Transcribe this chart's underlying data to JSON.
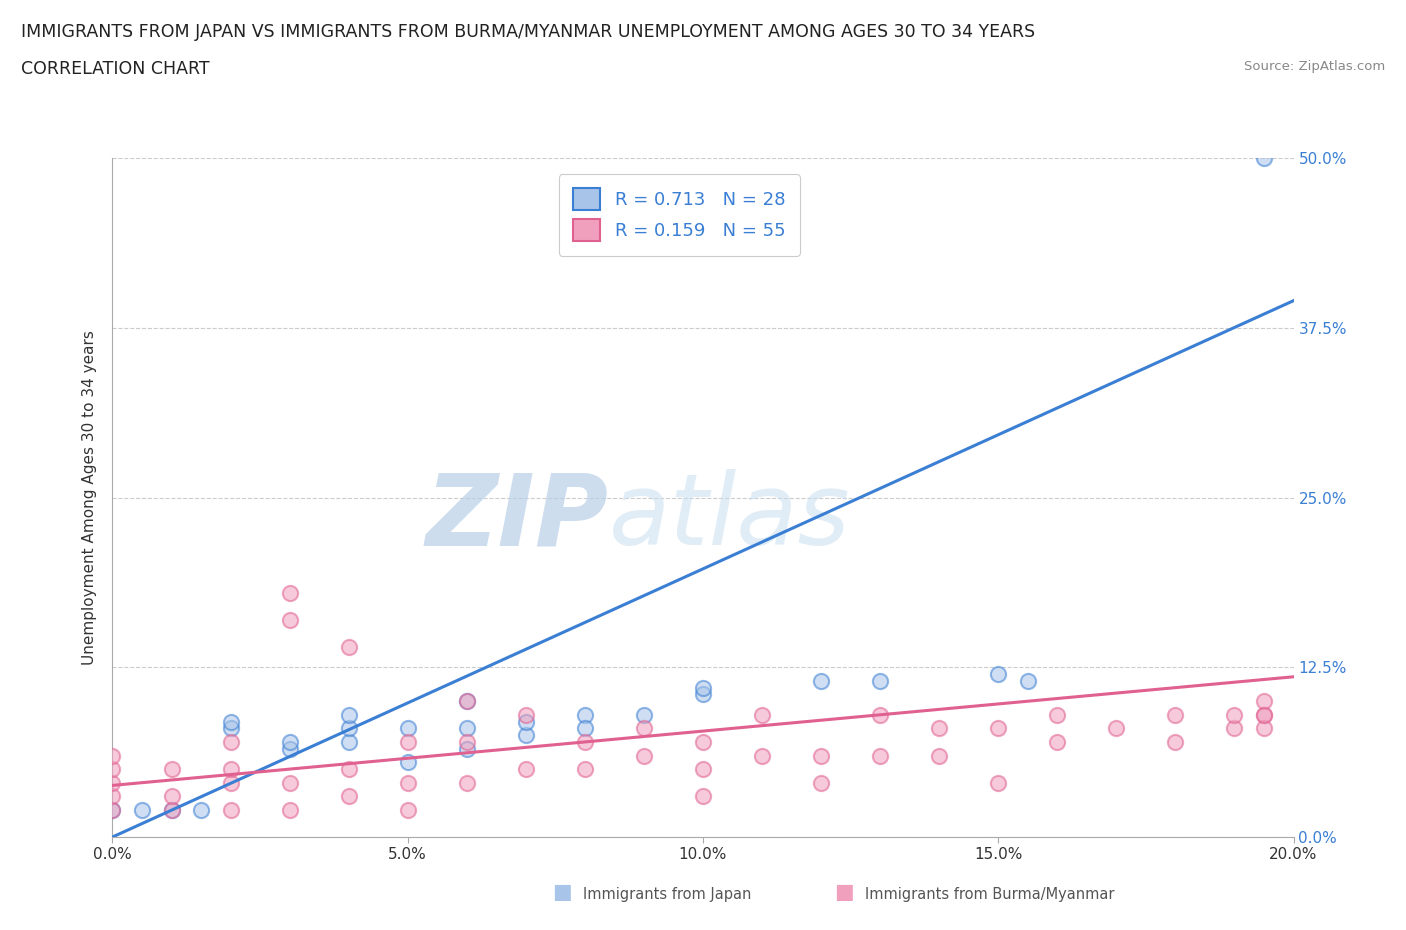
{
  "title_line1": "IMMIGRANTS FROM JAPAN VS IMMIGRANTS FROM BURMA/MYANMAR UNEMPLOYMENT AMONG AGES 30 TO 34 YEARS",
  "title_line2": "CORRELATION CHART",
  "source_text": "Source: ZipAtlas.com",
  "ylabel": "Unemployment Among Ages 30 to 34 years",
  "xlim": [
    0.0,
    0.2
  ],
  "ylim": [
    0.0,
    0.5
  ],
  "xticks": [
    0.0,
    0.05,
    0.1,
    0.15,
    0.2
  ],
  "yticks": [
    0.0,
    0.125,
    0.25,
    0.375,
    0.5
  ],
  "xtick_labels": [
    "0.0%",
    "5.0%",
    "10.0%",
    "15.0%",
    "20.0%"
  ],
  "ytick_labels": [
    "0.0%",
    "12.5%",
    "25.0%",
    "37.5%",
    "50.0%"
  ],
  "japan_color": "#a8c4e8",
  "burma_color": "#f0a0bc",
  "japan_line_color": "#3a7fd4",
  "burma_line_color": "#e06090",
  "right_axis_color": "#3a7fd4",
  "japan_R": 0.713,
  "japan_N": 28,
  "burma_R": 0.159,
  "burma_N": 55,
  "watermark_zip": "ZIP",
  "watermark_atlas": "atlas",
  "legend_label_japan": "Immigrants from Japan",
  "legend_label_burma": "Immigrants from Burma/Myanmar",
  "japan_scatter_x": [
    0.0,
    0.005,
    0.01,
    0.015,
    0.02,
    0.02,
    0.03,
    0.03,
    0.04,
    0.04,
    0.04,
    0.05,
    0.05,
    0.06,
    0.06,
    0.06,
    0.07,
    0.07,
    0.08,
    0.08,
    0.09,
    0.1,
    0.1,
    0.12,
    0.13,
    0.15,
    0.155,
    0.195
  ],
  "japan_scatter_y": [
    0.02,
    0.02,
    0.02,
    0.02,
    0.08,
    0.085,
    0.065,
    0.07,
    0.07,
    0.08,
    0.09,
    0.055,
    0.08,
    0.065,
    0.1,
    0.08,
    0.075,
    0.085,
    0.09,
    0.08,
    0.09,
    0.105,
    0.11,
    0.115,
    0.115,
    0.12,
    0.115,
    0.5
  ],
  "burma_scatter_x": [
    0.0,
    0.0,
    0.0,
    0.0,
    0.0,
    0.01,
    0.01,
    0.01,
    0.02,
    0.02,
    0.02,
    0.02,
    0.03,
    0.03,
    0.03,
    0.03,
    0.04,
    0.04,
    0.04,
    0.05,
    0.05,
    0.05,
    0.06,
    0.06,
    0.06,
    0.07,
    0.07,
    0.08,
    0.08,
    0.09,
    0.09,
    0.1,
    0.1,
    0.1,
    0.11,
    0.11,
    0.12,
    0.12,
    0.13,
    0.13,
    0.14,
    0.14,
    0.15,
    0.15,
    0.16,
    0.16,
    0.17,
    0.18,
    0.18,
    0.19,
    0.19,
    0.195,
    0.195,
    0.195,
    0.195
  ],
  "burma_scatter_y": [
    0.02,
    0.03,
    0.04,
    0.05,
    0.06,
    0.02,
    0.03,
    0.05,
    0.02,
    0.04,
    0.05,
    0.07,
    0.02,
    0.04,
    0.16,
    0.18,
    0.03,
    0.05,
    0.14,
    0.02,
    0.04,
    0.07,
    0.04,
    0.07,
    0.1,
    0.05,
    0.09,
    0.05,
    0.07,
    0.06,
    0.08,
    0.03,
    0.05,
    0.07,
    0.06,
    0.09,
    0.04,
    0.06,
    0.06,
    0.09,
    0.06,
    0.08,
    0.04,
    0.08,
    0.09,
    0.07,
    0.08,
    0.07,
    0.09,
    0.08,
    0.09,
    0.09,
    0.1,
    0.08,
    0.09
  ],
  "japan_line_x": [
    0.0,
    0.2
  ],
  "japan_line_y": [
    0.0,
    0.395
  ],
  "burma_line_x": [
    0.0,
    0.2
  ],
  "burma_line_y": [
    0.038,
    0.118
  ],
  "background_color": "#ffffff",
  "grid_color": "#cccccc",
  "title_fontsize": 12.5,
  "axis_label_fontsize": 11,
  "tick_fontsize": 11,
  "legend_fontsize": 13,
  "scatter_size": 120,
  "scatter_lw": 1.5
}
